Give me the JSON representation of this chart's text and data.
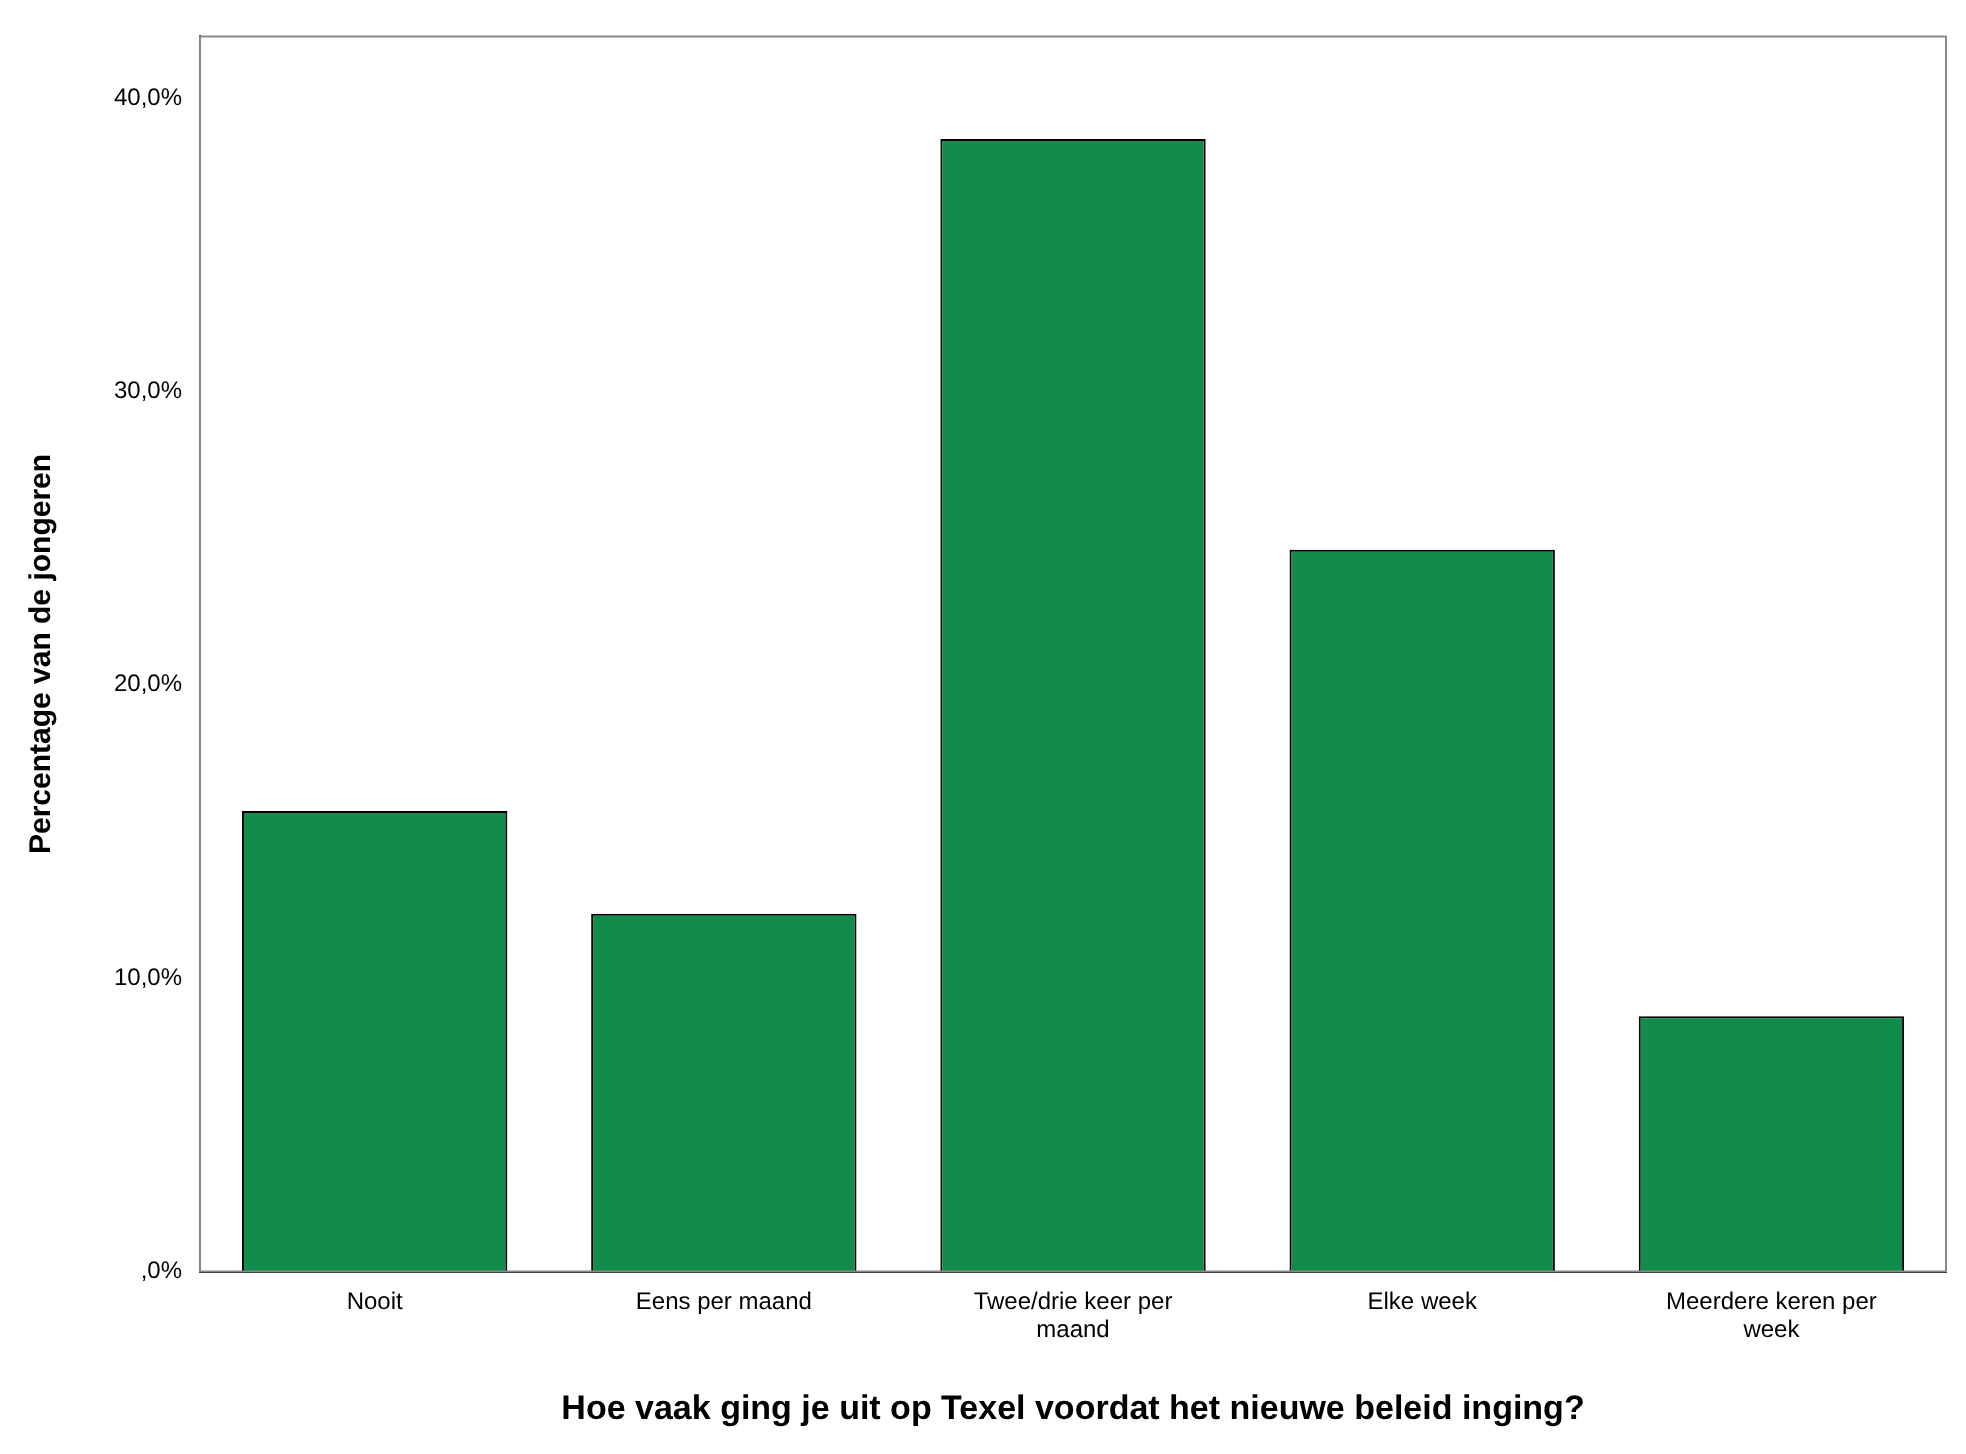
{
  "chart_data": {
    "type": "bar",
    "xlabel": "Hoe vaak ging je uit op Texel voordat het nieuwe beleid inging?",
    "ylabel": "Percentage van de jongeren",
    "categories": [
      "Nooit",
      "Eens per maand",
      "Twee/drie keer per maand",
      "Elke week",
      "Meerdere keren per week"
    ],
    "values": [
      15.7,
      12.2,
      38.6,
      24.6,
      8.7
    ],
    "color": "#128c4a",
    "ylim": [
      0,
      42.1
    ],
    "yticks": [
      {
        "value": 0,
        "label": ",0%"
      },
      {
        "value": 10,
        "label": "10,0%"
      },
      {
        "value": 20,
        "label": "20,0%"
      },
      {
        "value": 30,
        "label": "30,0%"
      },
      {
        "value": 40,
        "label": "40,0%"
      }
    ],
    "grid": false,
    "legend": false
  }
}
